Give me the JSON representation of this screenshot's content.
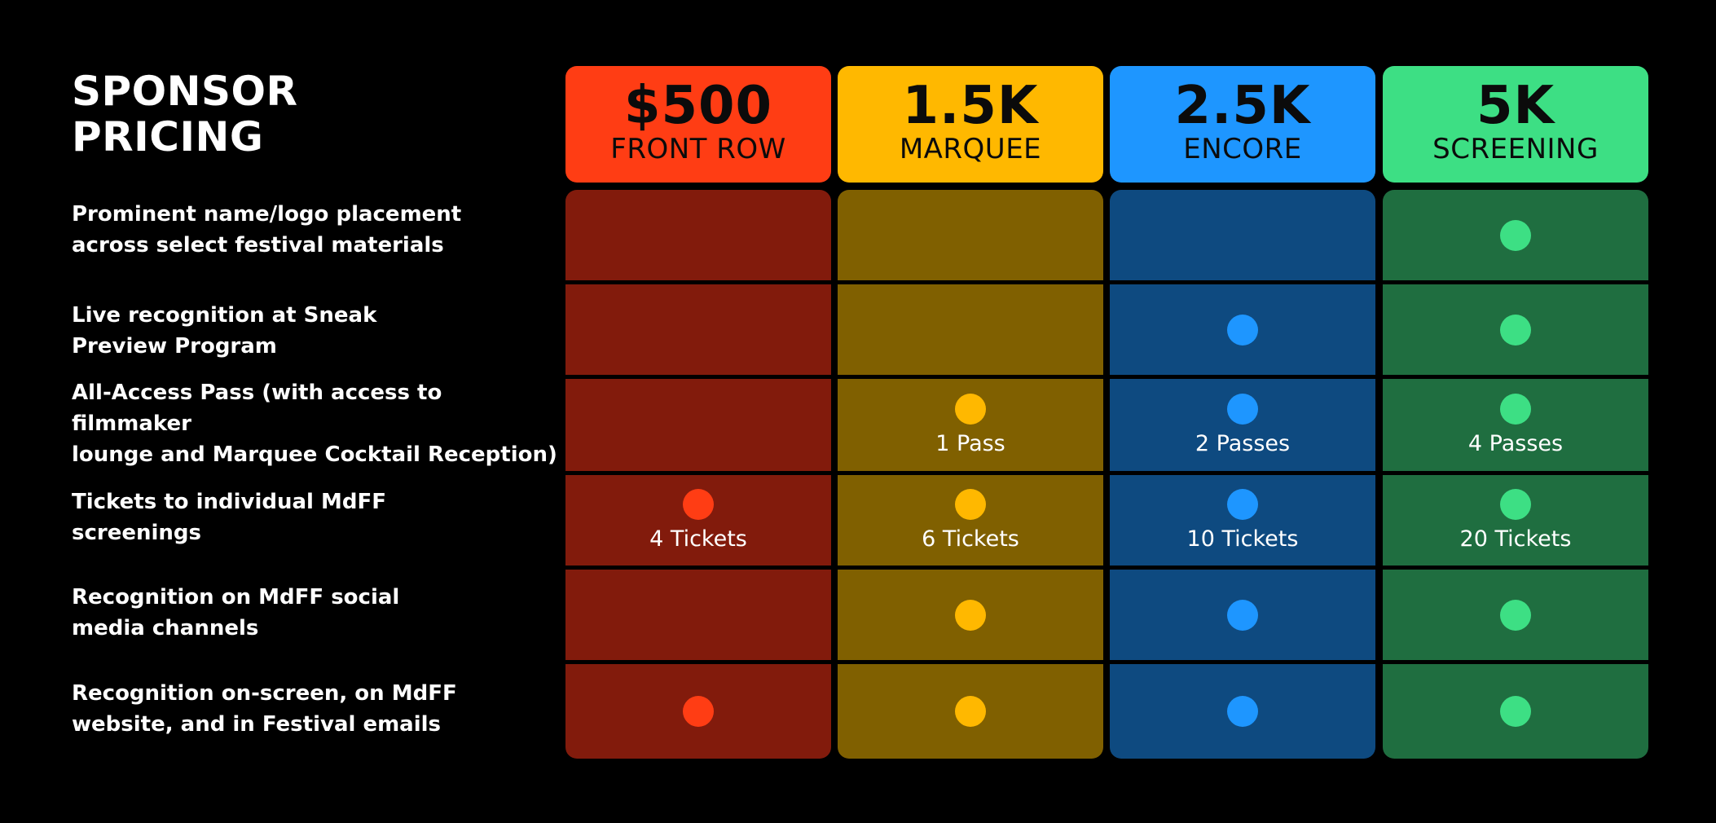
{
  "title": {
    "line1": "SPONSOR",
    "line2": "PRICING"
  },
  "features": [
    {
      "line1": "Prominent name/logo placement",
      "line2": "across select festival materials"
    },
    {
      "line1": "Live recognition at Sneak",
      "line2": "Preview Program"
    },
    {
      "line1": "All-Access Pass (with access to filmmaker",
      "line2": "lounge and Marquee Cocktail Reception)"
    },
    {
      "line1": "Tickets to individual MdFF",
      "line2": "screenings"
    },
    {
      "line1": "Recognition on MdFF social",
      "line2": "media channels"
    },
    {
      "line1": "Recognition on-screen, on MdFF",
      "line2": "website, and in Festival emails"
    }
  ],
  "tiers": [
    {
      "price": "$500",
      "name": "FRONT ROW",
      "colors": {
        "header": "#FF3D14",
        "body": "#821B0C",
        "dot": "#FF3D14"
      },
      "cells": [
        {
          "included": false,
          "label": ""
        },
        {
          "included": false,
          "label": ""
        },
        {
          "included": false,
          "label": ""
        },
        {
          "included": true,
          "label": "4 Tickets"
        },
        {
          "included": false,
          "label": ""
        },
        {
          "included": true,
          "label": ""
        }
      ]
    },
    {
      "price": "1.5K",
      "name": "MARQUEE",
      "colors": {
        "header": "#FFB800",
        "body": "#806000",
        "dot": "#FFB800"
      },
      "cells": [
        {
          "included": false,
          "label": ""
        },
        {
          "included": false,
          "label": ""
        },
        {
          "included": true,
          "label": "1 Pass"
        },
        {
          "included": true,
          "label": "6 Tickets"
        },
        {
          "included": true,
          "label": ""
        },
        {
          "included": true,
          "label": ""
        }
      ]
    },
    {
      "price": "2.5K",
      "name": "ENCORE",
      "colors": {
        "header": "#1E96FF",
        "body": "#0E4A80",
        "dot": "#1E96FF"
      },
      "cells": [
        {
          "included": false,
          "label": ""
        },
        {
          "included": true,
          "label": ""
        },
        {
          "included": true,
          "label": "2 Passes"
        },
        {
          "included": true,
          "label": "10 Tickets"
        },
        {
          "included": true,
          "label": ""
        },
        {
          "included": true,
          "label": ""
        }
      ]
    },
    {
      "price": "5K",
      "name": "SCREENING",
      "colors": {
        "header": "#3DDF84",
        "body": "#1F6E40",
        "dot": "#3DDF84"
      },
      "cells": [
        {
          "included": true,
          "label": ""
        },
        {
          "included": true,
          "label": ""
        },
        {
          "included": true,
          "label": "4 Passes"
        },
        {
          "included": true,
          "label": "20 Tickets"
        },
        {
          "included": true,
          "label": ""
        },
        {
          "included": true,
          "label": ""
        }
      ]
    }
  ]
}
